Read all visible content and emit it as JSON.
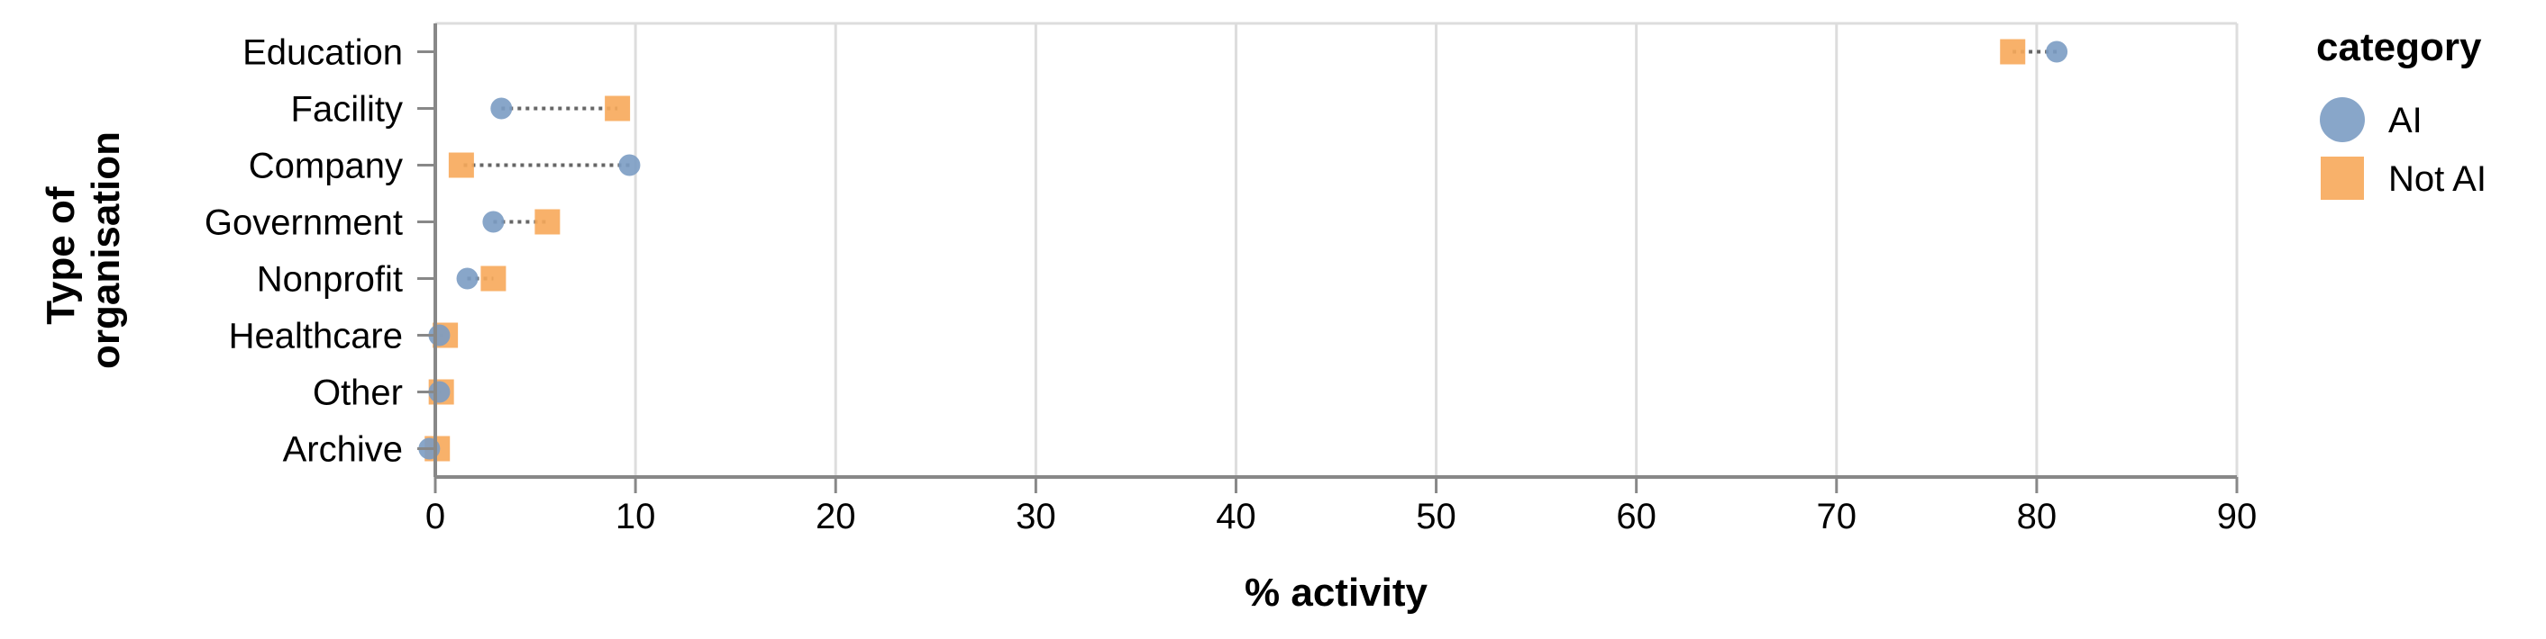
{
  "chart_data": {
    "type": "scatter",
    "xlabel": "% activity",
    "ylabel": [
      "Type of",
      "organisation"
    ],
    "xlim": [
      0,
      90
    ],
    "xticks": [
      0,
      10,
      20,
      30,
      40,
      50,
      60,
      70,
      80,
      90
    ],
    "grid": true,
    "categories": [
      "Education",
      "Facility",
      "Company",
      "Government",
      "Nonprofit",
      "Healthcare",
      "Other",
      "Archive"
    ],
    "series": [
      {
        "name": "AI",
        "values": [
          81.0,
          3.3,
          9.7,
          2.9,
          1.6,
          0.2,
          0.2,
          -0.3
        ]
      },
      {
        "name": "Not AI",
        "values": [
          78.8,
          9.1,
          1.3,
          5.6,
          2.9,
          0.5,
          0.3,
          0.1
        ]
      }
    ],
    "legend": {
      "title": "category",
      "position": "right",
      "items": [
        {
          "label": "AI",
          "shape": "circle",
          "color": "#7b9cc3"
        },
        {
          "label": "Not AI",
          "shape": "square",
          "color": "#f7a85a"
        }
      ]
    },
    "connector": {
      "style": "dotted",
      "color": "#666666"
    }
  }
}
